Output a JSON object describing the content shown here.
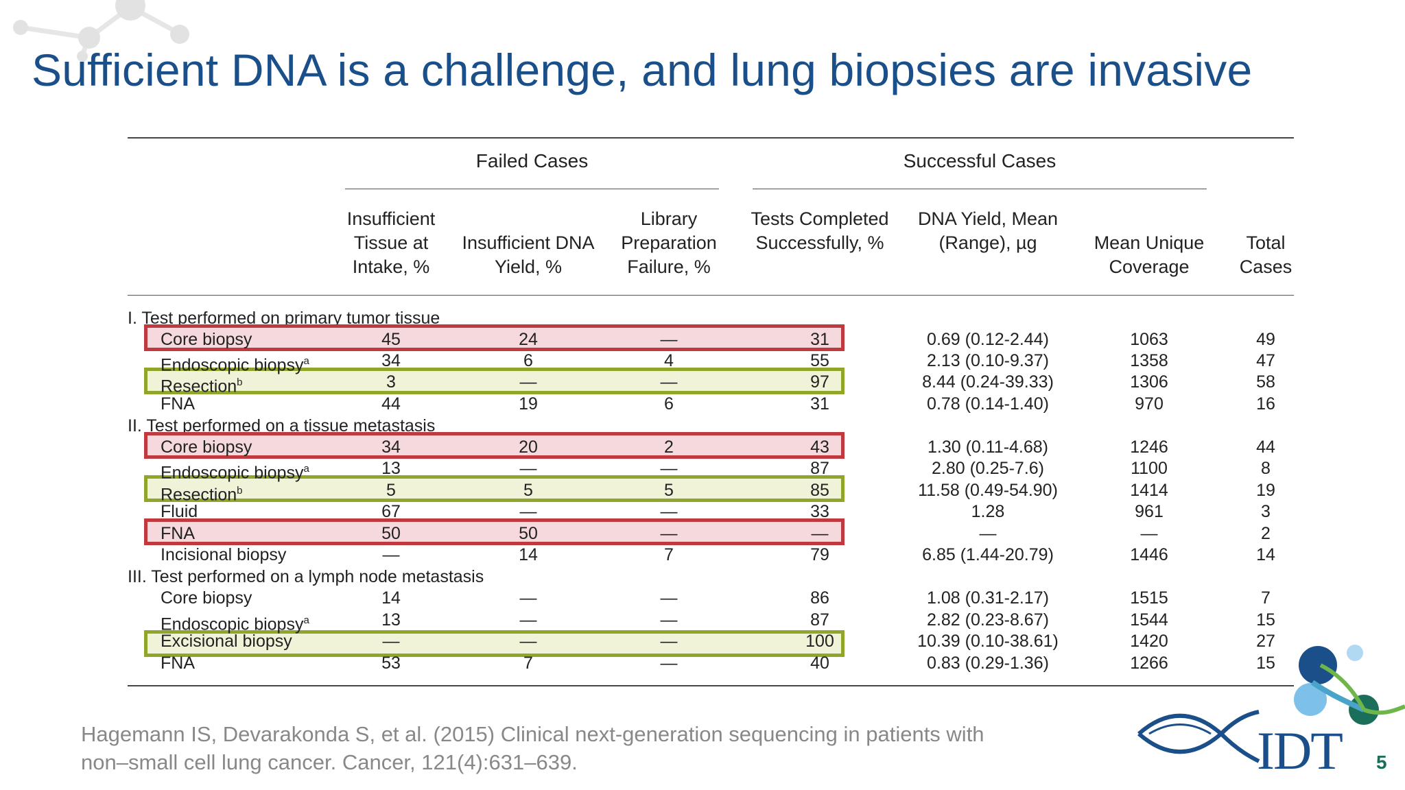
{
  "slide": {
    "title": "Sufficient DNA is a challenge, and lung biopsies are invasive",
    "page_number": "5",
    "logo_text": "IDT",
    "citation_line1": "Hagemann IS, Devarakonda S, et al. (2015) Clinical next-generation sequencing in patients with",
    "citation_line2": "non–small cell lung cancer. Cancer, 121(4):631–639."
  },
  "colors": {
    "title_blue": "#1b4f8a",
    "highlight_red": "#c0393f",
    "highlight_green": "#8fa62a",
    "page_number_green": "#1b6e5a"
  },
  "table": {
    "group_headers": [
      "Failed Cases",
      "Successful Cases"
    ],
    "columns": [
      "Insufficient Tissue at Intake, %",
      "Insufficient DNA Yield, %",
      "Library Preparation Failure, %",
      "Tests Completed Successfully, %",
      "DNA Yield, Mean (Range), µg",
      "Mean Unique Coverage",
      "Total Cases"
    ],
    "sections": [
      {
        "title": "I. Test performed on primary tumor tissue",
        "rows": [
          {
            "label": "Core biopsy",
            "sup": "",
            "values": [
              "45",
              "24",
              "—",
              "31",
              "0.69 (0.12-2.44)",
              "1063",
              "49"
            ],
            "highlight": "red"
          },
          {
            "label": "Endoscopic biopsy",
            "sup": "a",
            "values": [
              "34",
              "6",
              "4",
              "55",
              "2.13 (0.10-9.37)",
              "1358",
              "47"
            ],
            "highlight": ""
          },
          {
            "label": "Resection",
            "sup": "b",
            "values": [
              "3",
              "—",
              "—",
              "97",
              "8.44 (0.24-39.33)",
              "1306",
              "58"
            ],
            "highlight": "green"
          },
          {
            "label": "FNA",
            "sup": "",
            "values": [
              "44",
              "19",
              "6",
              "31",
              "0.78 (0.14-1.40)",
              "970",
              "16"
            ],
            "highlight": ""
          }
        ]
      },
      {
        "title": "II. Test performed on a tissue metastasis",
        "rows": [
          {
            "label": "Core biopsy",
            "sup": "",
            "values": [
              "34",
              "20",
              "2",
              "43",
              "1.30 (0.11-4.68)",
              "1246",
              "44"
            ],
            "highlight": "red"
          },
          {
            "label": "Endoscopic biopsy",
            "sup": "a",
            "values": [
              "13",
              "—",
              "—",
              "87",
              "2.80 (0.25-7.6)",
              "1100",
              "8"
            ],
            "highlight": ""
          },
          {
            "label": "Resection",
            "sup": "b",
            "values": [
              "5",
              "5",
              "5",
              "85",
              "11.58 (0.49-54.90)",
              "1414",
              "19"
            ],
            "highlight": "green"
          },
          {
            "label": "Fluid",
            "sup": "",
            "values": [
              "67",
              "—",
              "—",
              "33",
              "1.28",
              "961",
              "3"
            ],
            "highlight": ""
          },
          {
            "label": "FNA",
            "sup": "",
            "values": [
              "50",
              "50",
              "—",
              "—",
              "—",
              "—",
              "2"
            ],
            "highlight": "red"
          },
          {
            "label": "Incisional biopsy",
            "sup": "",
            "values": [
              "—",
              "14",
              "7",
              "79",
              "6.85 (1.44-20.79)",
              "1446",
              "14"
            ],
            "highlight": ""
          }
        ]
      },
      {
        "title": "III. Test performed on a lymph node metastasis",
        "rows": [
          {
            "label": "Core biopsy",
            "sup": "",
            "values": [
              "14",
              "—",
              "—",
              "86",
              "1.08 (0.31-2.17)",
              "1515",
              "7"
            ],
            "highlight": ""
          },
          {
            "label": "Endoscopic biopsy",
            "sup": "a",
            "values": [
              "13",
              "—",
              "—",
              "87",
              "2.82 (0.23-8.67)",
              "1544",
              "15"
            ],
            "highlight": ""
          },
          {
            "label": "Excisional biopsy",
            "sup": "",
            "values": [
              "—",
              "—",
              "—",
              "100",
              "10.39 (0.10-38.61)",
              "1420",
              "27"
            ],
            "highlight": "green"
          },
          {
            "label": "FNA",
            "sup": "",
            "values": [
              "53",
              "7",
              "—",
              "40",
              "0.83 (0.29-1.36)",
              "1266",
              "15"
            ],
            "highlight": ""
          }
        ]
      }
    ]
  }
}
